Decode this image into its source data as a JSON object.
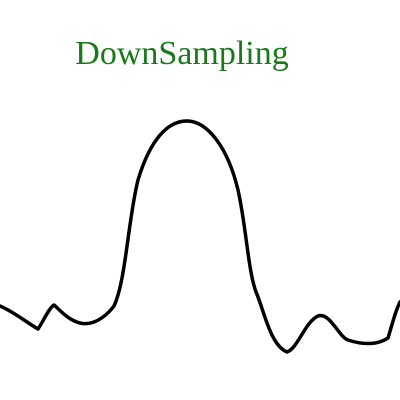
{
  "diagram": {
    "title": "DownSampling",
    "colors": {
      "title": "#1a7a1a",
      "signal": "#000000",
      "sample_marker": "#b8875e",
      "sample_marker_top": "#9a9ab0",
      "background": "#ffffff"
    }
  }
}
